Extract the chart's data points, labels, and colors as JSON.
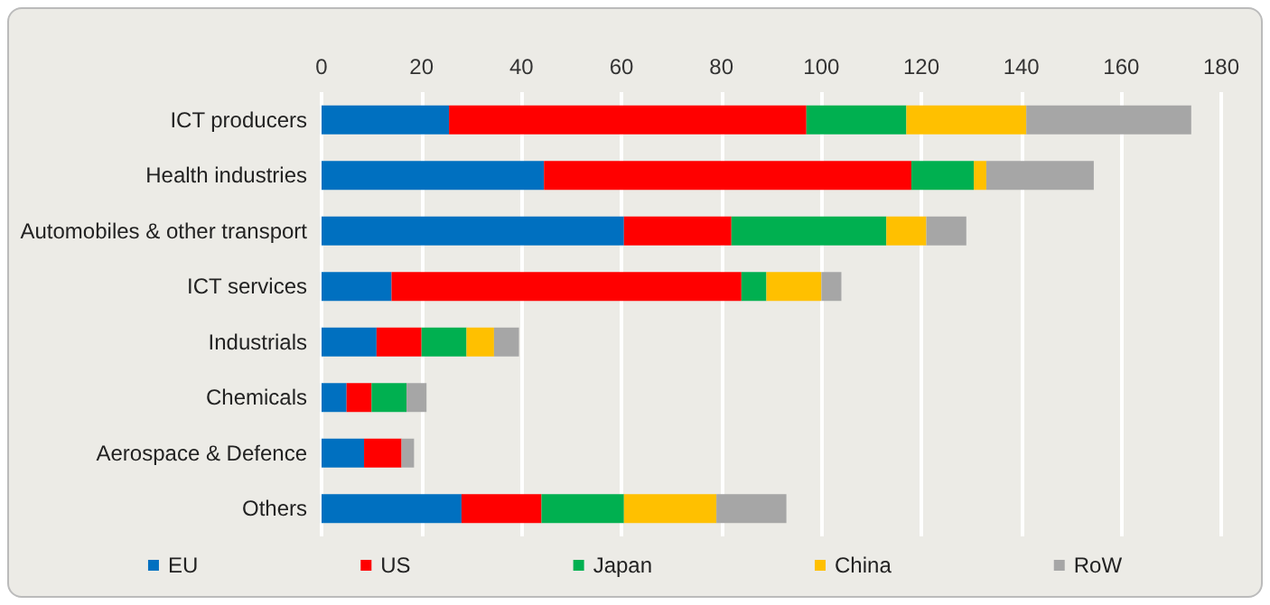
{
  "chart_data": {
    "type": "bar",
    "orientation": "horizontal",
    "stacked": true,
    "categories": [
      "ICT producers",
      "Health industries",
      "Automobiles & other transport",
      "ICT services",
      "Industrials",
      "Chemicals",
      "Aerospace & Defence",
      "Others"
    ],
    "series": [
      {
        "name": "EU",
        "color": "#0070c0",
        "values": [
          25.5,
          44.5,
          60.5,
          14,
          11,
          5,
          8.5,
          28
        ]
      },
      {
        "name": "US",
        "color": "#ff0000",
        "values": [
          71.5,
          73.5,
          21.5,
          70,
          9,
          5,
          7.5,
          16
        ]
      },
      {
        "name": "Japan",
        "color": "#00b050",
        "values": [
          20,
          12.5,
          31,
          5,
          9,
          7,
          0,
          16.5
        ]
      },
      {
        "name": "China",
        "color": "#ffc000",
        "values": [
          24,
          2.5,
          8,
          11,
          5.5,
          0,
          0,
          18.5
        ]
      },
      {
        "name": "RoW",
        "color": "#a6a6a6",
        "values": [
          33,
          21.5,
          8,
          4,
          5,
          4,
          2.5,
          14
        ]
      }
    ],
    "xlim": [
      0,
      180
    ],
    "xticks": [
      0,
      20,
      40,
      60,
      80,
      100,
      120,
      140,
      160,
      180
    ],
    "grid": "x",
    "legend": "bottom"
  }
}
